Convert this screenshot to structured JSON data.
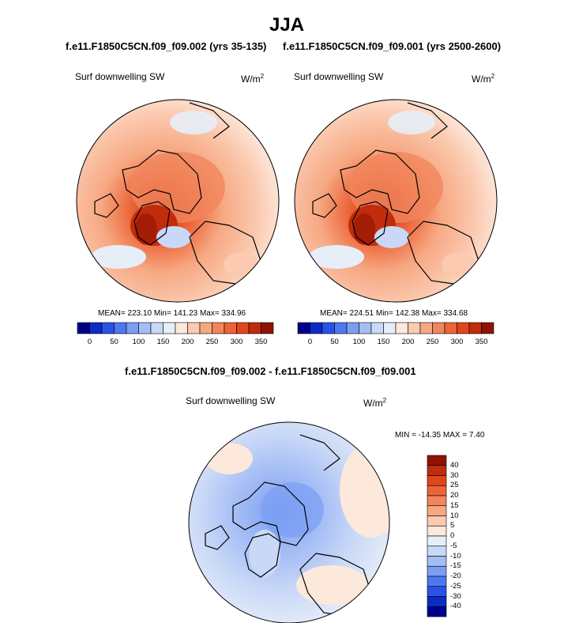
{
  "figure": {
    "title": "JJA",
    "left_run": "f.e11.F1850C5CN.f09_f09.002 (yrs 35-135)",
    "right_run": "f.e11.F1850C5CN.f09_f09.001 (yrs 2500-2600)",
    "diff_title": "f.e11.F1850C5CN.f09_f09.002 - f.e11.F1850C5CN.f09_f09.001"
  },
  "panels": {
    "left": {
      "variable": "Surf downwelling SW",
      "units": "W/m",
      "units_exp": "2",
      "stats": "MEAN= 223.10  Min= 141.23  Max= 334.96"
    },
    "right": {
      "variable": "Surf downwelling SW",
      "units": "W/m",
      "units_exp": "2",
      "stats": "MEAN= 224.51  Min= 142.38  Max= 334.68"
    },
    "diff": {
      "variable": "Surf downwelling SW",
      "units": "W/m",
      "units_exp": "2",
      "stats": "MIN = -14.35 MAX =   7.40"
    }
  },
  "colorbar_main": {
    "colors": [
      "#00008b",
      "#0b2cc4",
      "#2a52e6",
      "#4f78f0",
      "#7b9ef3",
      "#a4bdf5",
      "#c9d8f7",
      "#e6eef8",
      "#fde8dc",
      "#fbcab0",
      "#f6a882",
      "#f1865c",
      "#ec6438",
      "#e0461c",
      "#c02c0c",
      "#8f1303"
    ],
    "ticks": [
      "0",
      "50",
      "100",
      "150",
      "200",
      "250",
      "300",
      "350"
    ]
  },
  "colorbar_diff": {
    "colors_top_to_bottom": [
      "#8f1303",
      "#c02c0c",
      "#e0461c",
      "#ec6438",
      "#f1865c",
      "#f6a882",
      "#fbcab0",
      "#fde8dc",
      "#e6eef8",
      "#c9d8f7",
      "#a4bdf5",
      "#7b9ef3",
      "#4f78f0",
      "#2a52e6",
      "#0b2cc4",
      "#00008b"
    ],
    "ticks": [
      "40",
      "30",
      "25",
      "20",
      "15",
      "10",
      "5",
      "0",
      "-5",
      "-10",
      "-15",
      "-20",
      "-25",
      "-30",
      "-40"
    ]
  }
}
